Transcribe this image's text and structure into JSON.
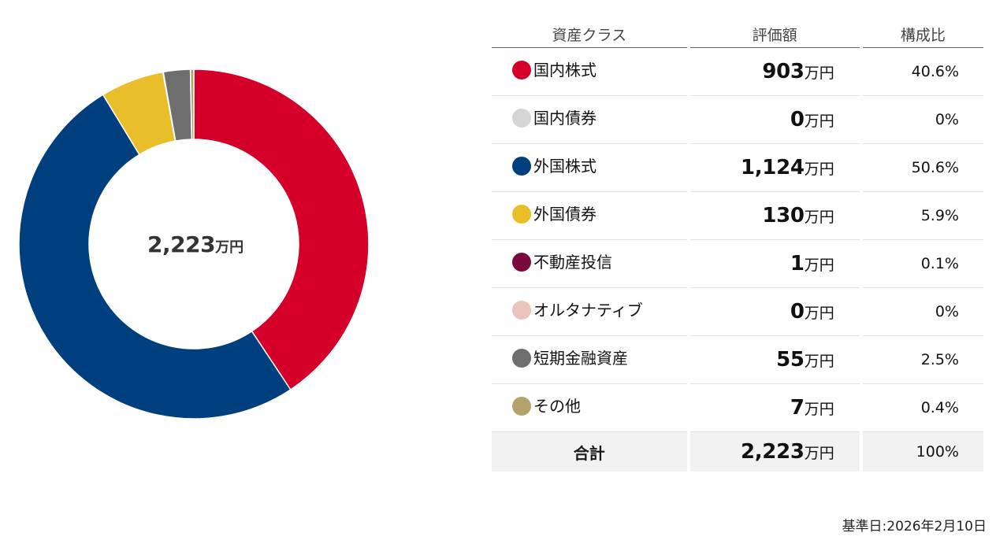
{
  "chart_data": {
    "type": "pie",
    "center_label": {
      "value": "2,223",
      "unit": "万円"
    },
    "categories": [
      "国内株式",
      "国内債券",
      "外国株式",
      "外国債券",
      "不動産投信",
      "オルタナティブ",
      "短期金融資産",
      "その他"
    ],
    "values": [
      903,
      0,
      1124,
      130,
      1,
      0,
      55,
      7
    ],
    "percentages": [
      40.6,
      0,
      50.6,
      5.9,
      0.1,
      0,
      2.5,
      0.4
    ],
    "colors": [
      "#d4002a",
      "#d5d5d5",
      "#003f7d",
      "#e8bf2b",
      "#7a0a3b",
      "#ecc3bd",
      "#6e6e6e",
      "#b4a46c"
    ]
  },
  "table": {
    "headers": {
      "asset_class": "資産クラス",
      "valuation": "評価額",
      "ratio": "構成比"
    },
    "rows": [
      {
        "name": "国内株式",
        "value": "903",
        "unit": "万円",
        "pct": "40.6%",
        "color": "#d4002a"
      },
      {
        "name": "国内債券",
        "value": "0",
        "unit": "万円",
        "pct": "0%",
        "color": "#d5d5d5"
      },
      {
        "name": "外国株式",
        "value": "1,124",
        "unit": "万円",
        "pct": "50.6%",
        "color": "#003f7d"
      },
      {
        "name": "外国債券",
        "value": "130",
        "unit": "万円",
        "pct": "5.9%",
        "color": "#e8bf2b"
      },
      {
        "name": "不動産投信",
        "value": "1",
        "unit": "万円",
        "pct": "0.1%",
        "color": "#7a0a3b"
      },
      {
        "name": "オルタナティブ",
        "value": "0",
        "unit": "万円",
        "pct": "0%",
        "color": "#ecc3bd"
      },
      {
        "name": "短期金融資産",
        "value": "55",
        "unit": "万円",
        "pct": "2.5%",
        "color": "#6e6e6e"
      },
      {
        "name": "その他",
        "value": "7",
        "unit": "万円",
        "pct": "0.4%",
        "color": "#b4a46c"
      }
    ],
    "total": {
      "label": "合計",
      "value": "2,223",
      "unit": "万円",
      "pct": "100%"
    }
  },
  "base_date": "基準日:2026年2月10日"
}
